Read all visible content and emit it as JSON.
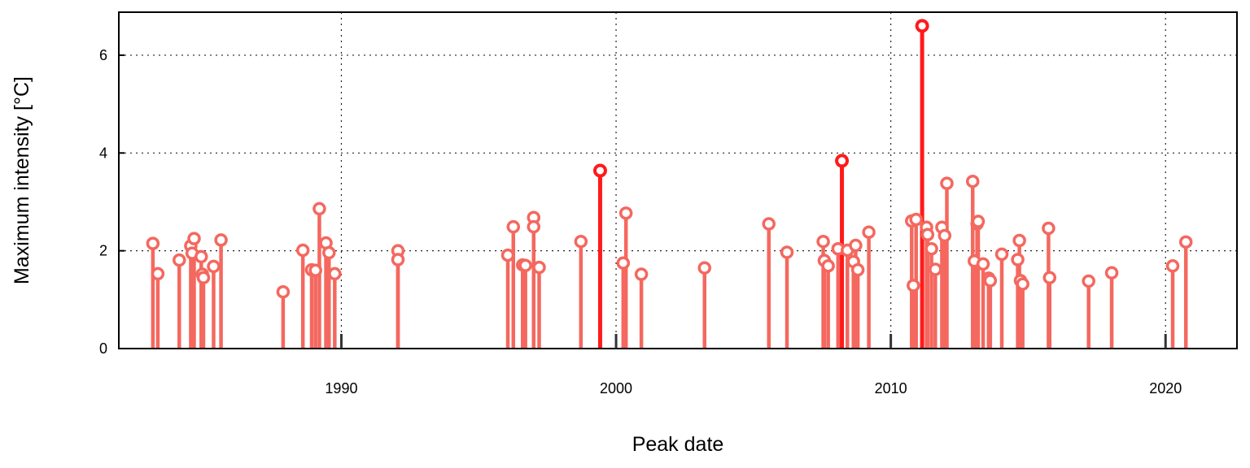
{
  "chart_data": {
    "type": "lollipop",
    "xlabel": "Peak date",
    "ylabel": "Maximum intensity [°C]",
    "x_ticks": [
      1990,
      2000,
      2010,
      2020
    ],
    "y_ticks": [
      0,
      2,
      4,
      6
    ],
    "xlim": [
      1981.9,
      2022.6
    ],
    "ylim": [
      0,
      6.88
    ],
    "grid": true,
    "colors": {
      "normal": "#f4685f",
      "highlight": "#ff1a1a"
    },
    "points": [
      {
        "x": 1983.14,
        "y": 2.15
      },
      {
        "x": 1983.32,
        "y": 1.53
      },
      {
        "x": 1984.1,
        "y": 1.81
      },
      {
        "x": 1984.52,
        "y": 2.1
      },
      {
        "x": 1984.57,
        "y": 1.95
      },
      {
        "x": 1984.64,
        "y": 2.25
      },
      {
        "x": 1984.9,
        "y": 1.88
      },
      {
        "x": 1984.94,
        "y": 1.52
      },
      {
        "x": 1984.98,
        "y": 1.45
      },
      {
        "x": 1985.35,
        "y": 1.68
      },
      {
        "x": 1985.62,
        "y": 2.22
      },
      {
        "x": 1987.88,
        "y": 1.16
      },
      {
        "x": 1988.6,
        "y": 2.01
      },
      {
        "x": 1988.92,
        "y": 1.61
      },
      {
        "x": 1989.06,
        "y": 1.6
      },
      {
        "x": 1989.2,
        "y": 2.86
      },
      {
        "x": 1989.44,
        "y": 2.16
      },
      {
        "x": 1989.55,
        "y": 1.96
      },
      {
        "x": 1989.76,
        "y": 1.53
      },
      {
        "x": 1992.06,
        "y": 2.0
      },
      {
        "x": 1992.06,
        "y": 1.82
      },
      {
        "x": 1996.06,
        "y": 1.91
      },
      {
        "x": 1996.26,
        "y": 2.49
      },
      {
        "x": 1996.6,
        "y": 1.71
      },
      {
        "x": 1996.7,
        "y": 1.7
      },
      {
        "x": 1997.0,
        "y": 2.68
      },
      {
        "x": 1997.0,
        "y": 2.49
      },
      {
        "x": 1997.2,
        "y": 1.66
      },
      {
        "x": 1998.72,
        "y": 2.19
      },
      {
        "x": 1999.42,
        "y": 3.64,
        "highlight": true
      },
      {
        "x": 2000.26,
        "y": 1.75
      },
      {
        "x": 2000.36,
        "y": 2.77
      },
      {
        "x": 2000.92,
        "y": 1.52
      },
      {
        "x": 2003.22,
        "y": 1.65
      },
      {
        "x": 2005.56,
        "y": 2.55
      },
      {
        "x": 2006.22,
        "y": 1.97
      },
      {
        "x": 2007.54,
        "y": 2.19
      },
      {
        "x": 2007.58,
        "y": 1.8
      },
      {
        "x": 2007.72,
        "y": 1.69
      },
      {
        "x": 2008.08,
        "y": 2.04
      },
      {
        "x": 2008.22,
        "y": 3.84,
        "highlight": true
      },
      {
        "x": 2008.42,
        "y": 2.01
      },
      {
        "x": 2008.64,
        "y": 1.78
      },
      {
        "x": 2008.72,
        "y": 2.11
      },
      {
        "x": 2008.8,
        "y": 1.61
      },
      {
        "x": 2009.2,
        "y": 2.38
      },
      {
        "x": 2010.76,
        "y": 2.61
      },
      {
        "x": 2010.82,
        "y": 1.29
      },
      {
        "x": 2010.92,
        "y": 2.64
      },
      {
        "x": 2011.14,
        "y": 6.6,
        "highlight": true
      },
      {
        "x": 2011.3,
        "y": 2.48
      },
      {
        "x": 2011.34,
        "y": 2.33
      },
      {
        "x": 2011.48,
        "y": 2.04
      },
      {
        "x": 2011.62,
        "y": 1.62
      },
      {
        "x": 2011.86,
        "y": 2.48
      },
      {
        "x": 2011.96,
        "y": 2.31
      },
      {
        "x": 2012.04,
        "y": 3.38
      },
      {
        "x": 2012.98,
        "y": 3.42
      },
      {
        "x": 2013.04,
        "y": 1.79
      },
      {
        "x": 2013.14,
        "y": 2.55
      },
      {
        "x": 2013.18,
        "y": 2.6
      },
      {
        "x": 2013.36,
        "y": 1.73
      },
      {
        "x": 2013.56,
        "y": 1.44
      },
      {
        "x": 2013.62,
        "y": 1.39
      },
      {
        "x": 2014.04,
        "y": 1.93
      },
      {
        "x": 2014.62,
        "y": 1.82
      },
      {
        "x": 2014.68,
        "y": 2.21
      },
      {
        "x": 2014.72,
        "y": 1.39
      },
      {
        "x": 2014.8,
        "y": 1.32
      },
      {
        "x": 2015.74,
        "y": 2.46
      },
      {
        "x": 2015.78,
        "y": 1.45
      },
      {
        "x": 2017.2,
        "y": 1.38
      },
      {
        "x": 2018.04,
        "y": 1.55
      },
      {
        "x": 2020.26,
        "y": 1.69
      },
      {
        "x": 2020.74,
        "y": 2.18
      }
    ]
  }
}
